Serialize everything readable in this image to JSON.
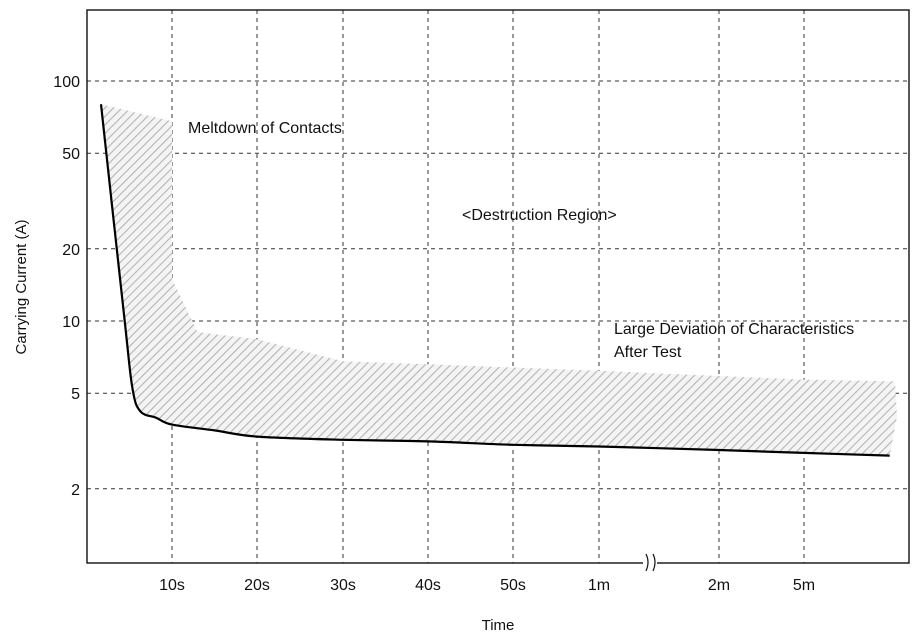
{
  "chart_data": {
    "type": "line",
    "xlabel": "Time",
    "ylabel": "Carrying Current (A)",
    "x_ticks": [
      "10s",
      "20s",
      "30s",
      "40s",
      "50s",
      "1m",
      "2m",
      "5m"
    ],
    "y_ticks": [
      2,
      5,
      10,
      20,
      50,
      100
    ],
    "y_scale": "log",
    "ylim": [
      1.2,
      200
    ],
    "x_axis_break": "between 1m and 2m",
    "grid": true,
    "annotations": [
      "Meltdown of Contacts",
      "<Destruction Region>",
      "Large Deviation of Characteristics",
      "After Test"
    ],
    "series": [
      {
        "x": [
          "1s",
          "4s",
          "5s",
          "6s",
          "8s",
          "10s",
          "15s",
          "20s",
          "30s",
          "40s",
          "50s",
          "1m",
          "2m",
          "5m",
          "9m"
        ],
        "y": [
          80,
          10,
          5.2,
          4.2,
          3.95,
          3.7,
          3.5,
          3.3,
          3.2,
          3.15,
          3.05,
          3.0,
          2.9,
          2.82,
          2.75
        ]
      }
    ],
    "shaded_region": {
      "upper": [
        [
          1,
          80
        ],
        [
          10,
          68
        ],
        [
          10,
          15
        ],
        [
          13,
          9
        ],
        [
          20,
          8.4
        ],
        [
          30,
          6.8
        ],
        [
          40,
          6.6
        ],
        [
          50,
          6.4
        ],
        [
          60,
          6.2
        ],
        [
          120,
          5.9
        ],
        [
          300,
          5.7
        ],
        [
          560,
          5.6
        ]
      ],
      "lower_follows": "curve"
    },
    "colors": {
      "line": "#000000",
      "hatch": "#bdbdbd",
      "grid": "#333333"
    }
  }
}
